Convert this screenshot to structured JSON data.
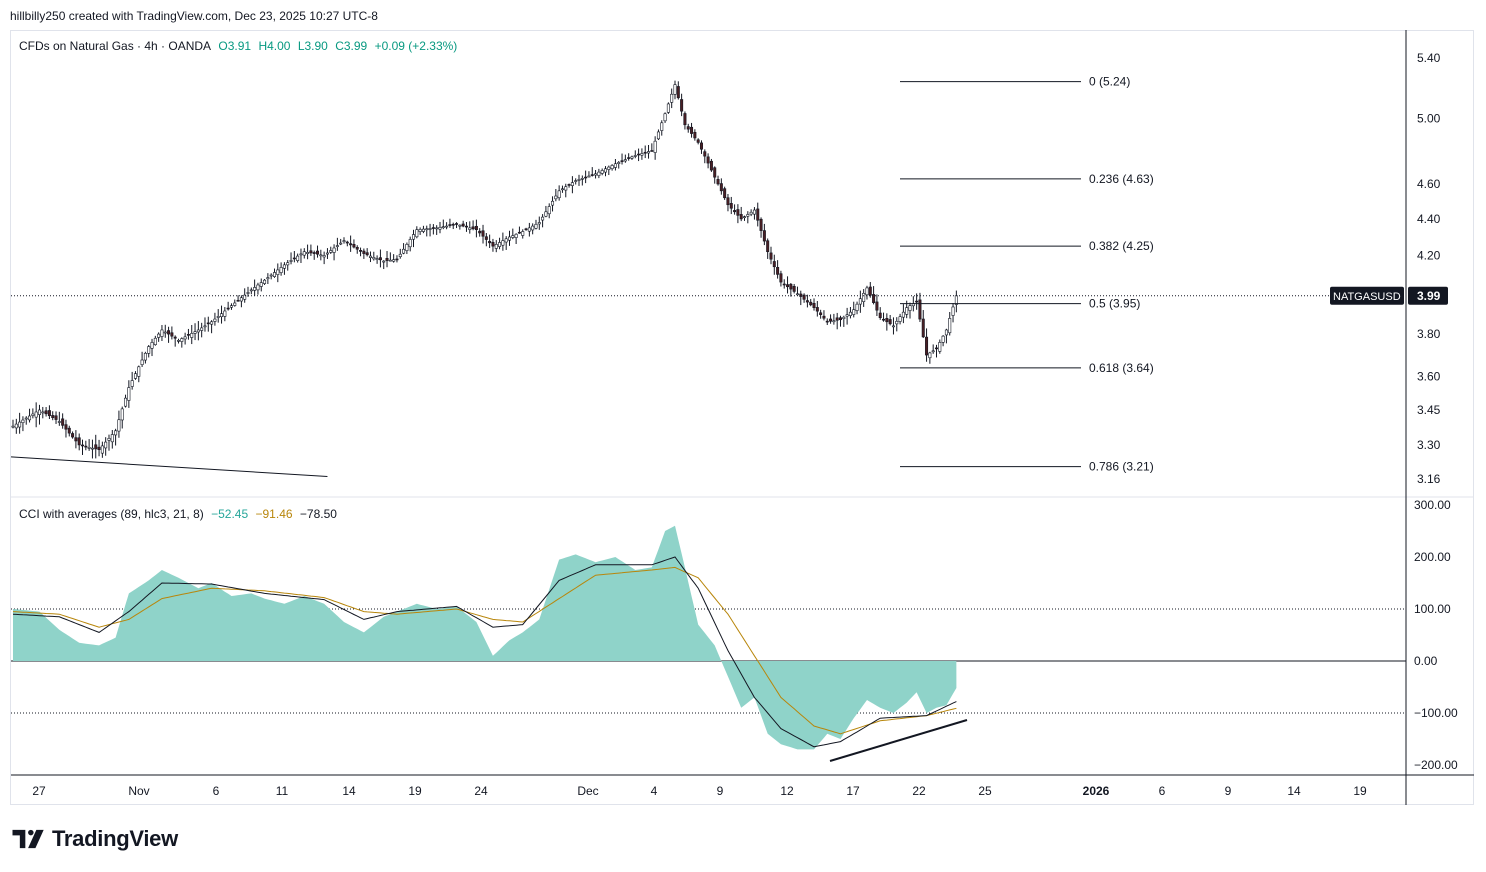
{
  "header": {
    "text": "hillbilly250 created with TradingView.com, Dec 23, 2025 10:27 UTC-8"
  },
  "main_legend": {
    "symbol": "CFDs on Natural Gas · 4h · OANDA",
    "open": "O3.91",
    "high": "H4.00",
    "low": "L3.90",
    "close": "C3.99",
    "change": "+0.09 (+2.33%)"
  },
  "cci_legend": {
    "name": "CCI with averages (89, hlc3, 21, 8)",
    "v1": "−52.45",
    "v2": "−91.46",
    "v3": "−78.50"
  },
  "price_tag": {
    "symbol": "NATGASUSD",
    "value": "3.99"
  },
  "brand": {
    "name": "TradingView"
  },
  "colors": {
    "up": "#ffffff",
    "down": "#4a1f24",
    "wick": "#131722",
    "cci_fill": "#8fd3c9",
    "cci_line": "#131722",
    "cci_avg": "#b8860b",
    "fib": "#131722",
    "tag_bg": "#131722"
  },
  "chart_data": [
    {
      "type": "candlestick",
      "title": "CFDs on Natural Gas · 4h · OANDA",
      "ylim": [
        3.16,
        5.4
      ],
      "y_scale": "log",
      "y_ticks": [
        "5.40",
        "5.00",
        "4.60",
        "4.40",
        "4.20",
        "3.80",
        "3.60",
        "3.45",
        "3.30",
        "3.16"
      ],
      "x_ticks": [
        "27",
        "Nov",
        "6",
        "11",
        "14",
        "19",
        "24",
        "Dec",
        "4",
        "9",
        "12",
        "17",
        "22",
        "25",
        "2026",
        "6",
        "9",
        "14",
        "19"
      ],
      "price_path": [
        [
          0,
          3.38
        ],
        [
          8,
          3.45
        ],
        [
          14,
          3.4
        ],
        [
          20,
          3.3
        ],
        [
          26,
          3.28
        ],
        [
          31,
          3.36
        ],
        [
          35,
          3.55
        ],
        [
          41,
          3.74
        ],
        [
          45,
          3.82
        ],
        [
          50,
          3.77
        ],
        [
          56,
          3.82
        ],
        [
          60,
          3.86
        ],
        [
          66,
          3.94
        ],
        [
          72,
          4.02
        ],
        [
          76,
          4.07
        ],
        [
          82,
          4.15
        ],
        [
          88,
          4.22
        ],
        [
          94,
          4.2
        ],
        [
          100,
          4.28
        ],
        [
          106,
          4.21
        ],
        [
          112,
          4.17
        ],
        [
          116,
          4.18
        ],
        [
          122,
          4.34
        ],
        [
          128,
          4.35
        ],
        [
          134,
          4.37
        ],
        [
          140,
          4.34
        ],
        [
          145,
          4.25
        ],
        [
          150,
          4.3
        ],
        [
          154,
          4.33
        ],
        [
          159,
          4.38
        ],
        [
          165,
          4.56
        ],
        [
          170,
          4.62
        ],
        [
          176,
          4.66
        ],
        [
          182,
          4.72
        ],
        [
          188,
          4.77
        ],
        [
          193,
          4.8
        ],
        [
          197,
          5.03
        ],
        [
          200,
          5.22
        ],
        [
          203,
          4.96
        ],
        [
          207,
          4.85
        ],
        [
          212,
          4.64
        ],
        [
          216,
          4.48
        ],
        [
          220,
          4.4
        ],
        [
          224,
          4.45
        ],
        [
          228,
          4.22
        ],
        [
          232,
          4.06
        ],
        [
          237,
          4.0
        ],
        [
          242,
          3.93
        ],
        [
          246,
          3.86
        ],
        [
          250,
          3.87
        ],
        [
          254,
          3.92
        ],
        [
          258,
          4.03
        ],
        [
          262,
          3.88
        ],
        [
          266,
          3.84
        ],
        [
          270,
          3.93
        ],
        [
          273,
          3.96
        ],
        [
          276,
          3.7
        ],
        [
          279,
          3.73
        ],
        [
          282,
          3.82
        ],
        [
          285,
          3.99
        ]
      ],
      "price_low_marker": [
        [
          0,
          3.34
        ],
        [
          28,
          3.22
        ]
      ],
      "trendline": {
        "from": [
          0,
          3.25
        ],
        "to": [
          95,
          3.17
        ]
      },
      "fib_levels": [
        {
          "label": "0 (5.24)",
          "value": 5.24
        },
        {
          "label": "0.236 (4.63)",
          "value": 4.63
        },
        {
          "label": "0.382 (4.25)",
          "value": 4.25
        },
        {
          "label": "0.5 (3.95)",
          "value": 3.95
        },
        {
          "label": "0.618 (3.64)",
          "value": 3.64
        },
        {
          "label": "0.786 (3.21)",
          "value": 3.21
        }
      ],
      "last_price": 3.99
    },
    {
      "type": "area",
      "title": "CCI with averages (89, hlc3, 21, 8)",
      "ylim": [
        -200,
        300
      ],
      "y_ticks": [
        "300.00",
        "200.00",
        "100.00",
        "0.00",
        "−100.00",
        "−200.00"
      ],
      "reference_lines": [
        100,
        0,
        -100
      ],
      "cci_path": [
        [
          0,
          100
        ],
        [
          8,
          95
        ],
        [
          14,
          60
        ],
        [
          20,
          35
        ],
        [
          26,
          30
        ],
        [
          31,
          45
        ],
        [
          35,
          130
        ],
        [
          41,
          155
        ],
        [
          45,
          175
        ],
        [
          50,
          160
        ],
        [
          56,
          140
        ],
        [
          60,
          150
        ],
        [
          66,
          125
        ],
        [
          72,
          130
        ],
        [
          76,
          120
        ],
        [
          82,
          110
        ],
        [
          88,
          125
        ],
        [
          94,
          110
        ],
        [
          100,
          75
        ],
        [
          106,
          55
        ],
        [
          112,
          85
        ],
        [
          116,
          95
        ],
        [
          122,
          110
        ],
        [
          128,
          100
        ],
        [
          134,
          105
        ],
        [
          140,
          75
        ],
        [
          145,
          10
        ],
        [
          150,
          40
        ],
        [
          154,
          55
        ],
        [
          159,
          80
        ],
        [
          165,
          195
        ],
        [
          170,
          205
        ],
        [
          176,
          190
        ],
        [
          182,
          200
        ],
        [
          188,
          175
        ],
        [
          193,
          180
        ],
        [
          197,
          250
        ],
        [
          200,
          260
        ],
        [
          203,
          180
        ],
        [
          207,
          70
        ],
        [
          212,
          30
        ],
        [
          216,
          -30
        ],
        [
          220,
          -90
        ],
        [
          224,
          -70
        ],
        [
          228,
          -140
        ],
        [
          232,
          -160
        ],
        [
          237,
          -170
        ],
        [
          242,
          -170
        ],
        [
          246,
          -140
        ],
        [
          250,
          -150
        ],
        [
          254,
          -110
        ],
        [
          258,
          -75
        ],
        [
          262,
          -90
        ],
        [
          266,
          -100
        ],
        [
          270,
          -80
        ],
        [
          273,
          -60
        ],
        [
          276,
          -100
        ],
        [
          279,
          -90
        ],
        [
          282,
          -85
        ],
        [
          285,
          -52
        ]
      ],
      "avg1_path": [
        [
          0,
          90
        ],
        [
          14,
          85
        ],
        [
          26,
          55
        ],
        [
          35,
          95
        ],
        [
          45,
          150
        ],
        [
          60,
          148
        ],
        [
          76,
          130
        ],
        [
          94,
          118
        ],
        [
          106,
          80
        ],
        [
          116,
          95
        ],
        [
          134,
          105
        ],
        [
          145,
          65
        ],
        [
          154,
          70
        ],
        [
          165,
          155
        ],
        [
          176,
          185
        ],
        [
          193,
          185
        ],
        [
          200,
          200
        ],
        [
          207,
          140
        ],
        [
          216,
          20
        ],
        [
          224,
          -70
        ],
        [
          232,
          -130
        ],
        [
          242,
          -165
        ],
        [
          250,
          -155
        ],
        [
          262,
          -110
        ],
        [
          276,
          -105
        ],
        [
          285,
          -78
        ]
      ],
      "avg2_path": [
        [
          0,
          95
        ],
        [
          14,
          90
        ],
        [
          26,
          65
        ],
        [
          35,
          80
        ],
        [
          45,
          120
        ],
        [
          60,
          140
        ],
        [
          76,
          135
        ],
        [
          94,
          122
        ],
        [
          106,
          95
        ],
        [
          116,
          90
        ],
        [
          134,
          100
        ],
        [
          145,
          80
        ],
        [
          154,
          75
        ],
        [
          165,
          120
        ],
        [
          176,
          165
        ],
        [
          193,
          175
        ],
        [
          200,
          180
        ],
        [
          207,
          160
        ],
        [
          216,
          90
        ],
        [
          224,
          10
        ],
        [
          232,
          -70
        ],
        [
          242,
          -125
        ],
        [
          250,
          -140
        ],
        [
          262,
          -115
        ],
        [
          276,
          -105
        ],
        [
          285,
          -91
        ]
      ],
      "trendline": {
        "from": [
          237,
          -195
        ],
        "to": [
          290,
          -115
        ]
      }
    }
  ]
}
